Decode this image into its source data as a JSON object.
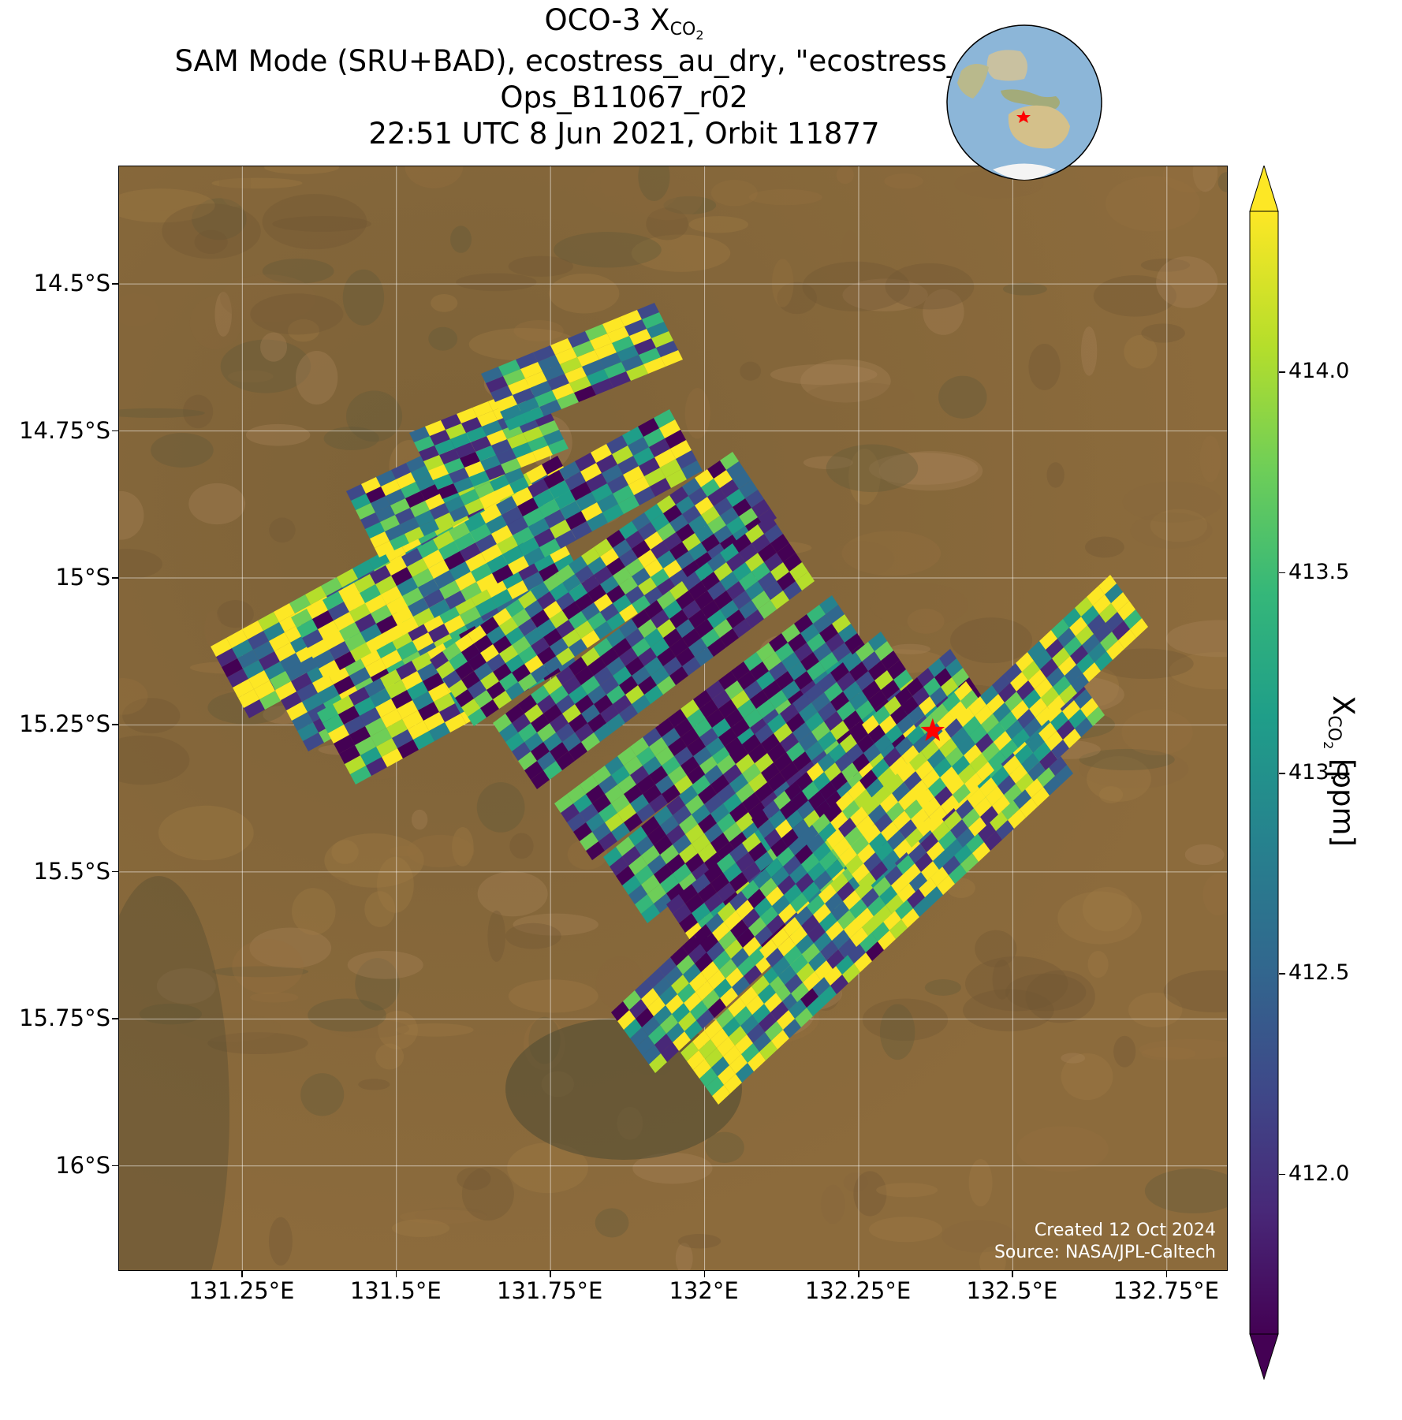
{
  "title": {
    "line1_prefix": "OCO-3 X",
    "line1_sub": "CO",
    "line1_sub2": "2",
    "line2": "SAM Mode (SRU+BAD), ecostress_au_dry, \"ecostress_au_dry\"",
    "line3": "Ops_B11067_r02",
    "line4": "22:51 UTC 8 Jun 2021, Orbit 11877"
  },
  "map": {
    "lon_range": [
      131.05,
      132.85
    ],
    "lat_range": [
      -16.18,
      -14.3
    ],
    "lat_ticks": [
      {
        "value": -14.5,
        "label": "14.5°S"
      },
      {
        "value": -14.75,
        "label": "14.75°S"
      },
      {
        "value": -15.0,
        "label": "15°S"
      },
      {
        "value": -15.25,
        "label": "15.25°S"
      },
      {
        "value": -15.5,
        "label": "15.5°S"
      },
      {
        "value": -15.75,
        "label": "15.75°S"
      },
      {
        "value": -16.0,
        "label": "16°S"
      }
    ],
    "lon_ticks": [
      {
        "value": 131.25,
        "label": "131.25°E"
      },
      {
        "value": 131.5,
        "label": "131.5°E"
      },
      {
        "value": 131.75,
        "label": "131.75°E"
      },
      {
        "value": 132.0,
        "label": "132°E"
      },
      {
        "value": 132.25,
        "label": "132.25°E"
      },
      {
        "value": 132.5,
        "label": "132.5°E"
      },
      {
        "value": 132.75,
        "label": "132.75°E"
      }
    ],
    "target_marker": {
      "lon": 132.37,
      "lat": -15.26,
      "symbol": "star",
      "color": "#ff0000"
    },
    "gridlines": true,
    "basemap": "satellite imagery (arid terrain, brown)"
  },
  "colorbar": {
    "label_prefix": "X",
    "label_sub": "CO",
    "label_sub2": "2",
    "label_suffix": " [ppm]",
    "vmin": 411.6,
    "vmax": 414.4,
    "extend": "both",
    "colormap": "viridis",
    "ticks": [
      {
        "value": 412.0,
        "label": "412.0"
      },
      {
        "value": 412.5,
        "label": "412.5"
      },
      {
        "value": 413.0,
        "label": "413.0"
      },
      {
        "value": 413.5,
        "label": "413.5"
      },
      {
        "value": 414.0,
        "label": "414.0"
      }
    ]
  },
  "credit": {
    "line1": "Created 12 Oct 2024",
    "line2": "Source: NASA/JPL-Caltech"
  },
  "inset_globe": {
    "marker_color": "#ff0000",
    "region": "Australia / Indonesia"
  },
  "colors": {
    "viridis": [
      "#440154",
      "#482878",
      "#3e4989",
      "#31688e",
      "#26828e",
      "#1f9e89",
      "#35b779",
      "#6ece58",
      "#b5de2b",
      "#fde725"
    ]
  }
}
